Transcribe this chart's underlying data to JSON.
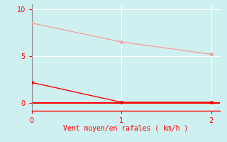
{
  "background_color": "#cff0f0",
  "grid_color": "#ffffff",
  "line1_x": [
    0,
    1,
    2
  ],
  "line1_y": [
    8.5,
    6.5,
    5.2
  ],
  "line1_color": "#f5a0a0",
  "line1_marker": "o",
  "line1_markersize": 2.5,
  "line1_linewidth": 1.0,
  "line2_x": [
    0,
    1,
    2
  ],
  "line2_y": [
    2.2,
    0.1,
    0.1
  ],
  "line2_color": "#ff0000",
  "line2_marker": "o",
  "line2_markersize": 2.5,
  "line2_linewidth": 1.0,
  "hline_y": 0,
  "hline_color": "#ff0000",
  "hline_linewidth": 1.5,
  "xlabel": "Vent moyen/en rafales ( km/h )",
  "xlabel_color": "#ff0000",
  "xlabel_fontsize": 7,
  "xlim": [
    0,
    2.1
  ],
  "ylim": [
    -0.8,
    10.5
  ],
  "yticks": [
    0,
    5,
    10
  ],
  "xticks": [
    0,
    1,
    2
  ],
  "tick_color": "#ff0000",
  "tick_fontsize": 7,
  "spine_color": "#888888",
  "bottom_spine_color": "#ff0000"
}
